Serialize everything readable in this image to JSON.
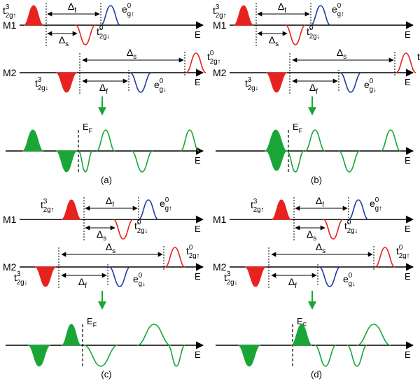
{
  "colors": {
    "red": "#e8231f",
    "blue": "#1f3f9e",
    "green": "#1aa637",
    "axis": "#000000"
  },
  "text": {
    "m1": "M1",
    "m2": "M2",
    "e_axis": "E",
    "delta_f": "Δf",
    "delta_s": "Δs",
    "fermi": "EF",
    "t_up": "t2g↑ (superscript 3)",
    "t_dn": "t2g↓ (superscript 3)",
    "eg_up": "eg↑ (superscript 0)",
    "eg_dn": "eg↓ (superscript 0)",
    "t0_up": "t2g↑ (superscript 0)",
    "t0_dn": "t2g↓ (superscript 0)"
  },
  "panels": [
    {
      "label": "(a)"
    },
    {
      "label": "(b)"
    },
    {
      "label": "(c)"
    },
    {
      "label": "(d)"
    }
  ]
}
